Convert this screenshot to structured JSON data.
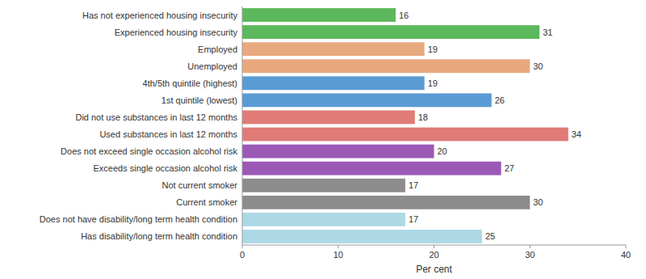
{
  "chart_data": {
    "type": "bar",
    "orientation": "horizontal",
    "categories": [
      "Has not experienced housing insecurity",
      "Experienced housing insecurity",
      "Employed",
      "Unemployed",
      "4th/5th quintile (highest)",
      "1st quintile (lowest)",
      "Did not use substances in last 12 months",
      "Used substances in last 12 months",
      "Does not exceed single occasion alcohol risk",
      "Exceeds single occasion alcohol risk",
      "Not current smoker",
      "Current smoker",
      "Does not have disability/long term health condition",
      "Has disability/long term health condition"
    ],
    "values": [
      16,
      31,
      19,
      30,
      19,
      26,
      18,
      34,
      20,
      27,
      17,
      30,
      17,
      25
    ],
    "colors": [
      "#5cb85c",
      "#5cb85c",
      "#e8a97e",
      "#e8a97e",
      "#5b9bd5",
      "#5b9bd5",
      "#e07b78",
      "#e07b78",
      "#9b59b6",
      "#9b59b6",
      "#8c8c8c",
      "#8c8c8c",
      "#add8e6",
      "#add8e6"
    ],
    "xlabel": "Per cent",
    "xlim": [
      0,
      40
    ],
    "xticks": [
      0,
      10,
      20,
      30,
      40
    ],
    "data_labels": true,
    "grid": false
  }
}
